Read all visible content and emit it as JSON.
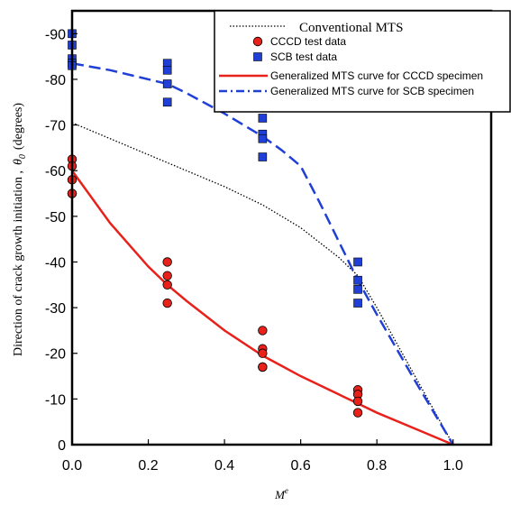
{
  "chart_data": {
    "type": "scatter",
    "xlabel": "M",
    "xlabel_superscript": "e",
    "ylabel_prefix": "Direction of crack growth initiation ,",
    "ylabel_symbol": "θ",
    "ylabel_subscript": "0",
    "ylabel_suffix": "(degrees)",
    "xlim": [
      0,
      1.1
    ],
    "ylim": [
      0,
      -95
    ],
    "xticks": [
      0.0,
      0.2,
      0.4,
      0.6,
      0.8,
      1.0
    ],
    "xtick_labels": [
      "0.0",
      "0.2",
      "0.4",
      "0.6",
      "0.8",
      "1.0"
    ],
    "yticks": [
      0,
      -10,
      -20,
      -30,
      -40,
      -50,
      -60,
      -70,
      -80,
      -90
    ],
    "ytick_labels": [
      "0",
      "-10",
      "-20",
      "-30",
      "-40",
      "-50",
      "-60",
      "-70",
      "-80",
      "-90"
    ],
    "grid": false,
    "legend_position": "top-right",
    "series": [
      {
        "name": "Conventional MTS",
        "kind": "line",
        "style": "dotted",
        "color": "#000000",
        "x": [
          0.0,
          0.1,
          0.2,
          0.3,
          0.4,
          0.5,
          0.6,
          0.7,
          0.75,
          0.8,
          0.9,
          1.0
        ],
        "y": [
          -70.5,
          -67.0,
          -63.5,
          -60.0,
          -56.5,
          -52.5,
          -47.5,
          -41.0,
          -37.0,
          -30.0,
          -15.0,
          0.0
        ]
      },
      {
        "name": "CCCD test data",
        "kind": "scatter",
        "marker": "circle",
        "color": "#e8211b",
        "x": [
          0.0,
          0.0,
          0.0,
          0.0,
          0.0,
          0.25,
          0.25,
          0.25,
          0.25,
          0.5,
          0.5,
          0.5,
          0.5,
          0.5,
          0.75,
          0.75,
          0.75,
          0.75
        ],
        "y": [
          -62.5,
          -61.0,
          -58.0,
          -55.0,
          -55.0,
          -40.0,
          -37.0,
          -35.0,
          -31.0,
          -25.0,
          -21.0,
          -20.0,
          -17.0,
          -17.0,
          -12.0,
          -11.0,
          -9.5,
          -7.0
        ]
      },
      {
        "name": "SCB test data",
        "kind": "scatter",
        "marker": "square",
        "color": "#1f3fd6",
        "x": [
          0.0,
          0.0,
          0.0,
          0.0,
          0.0,
          0.25,
          0.25,
          0.25,
          0.25,
          0.5,
          0.5,
          0.5,
          0.5,
          0.5,
          0.75,
          0.75,
          0.75,
          0.75
        ],
        "y": [
          -90.0,
          -87.5,
          -84.5,
          -83.5,
          -83.0,
          -83.5,
          -82.0,
          -79.0,
          -75.0,
          -75.0,
          -71.5,
          -68.0,
          -67.0,
          -63.0,
          -40.0,
          -36.0,
          -34.0,
          -31.0
        ]
      },
      {
        "name": "Generalized MTS curve for CCCD specimen",
        "kind": "line",
        "style": "solid",
        "color": "#e8211b",
        "x": [
          0.0,
          0.1,
          0.2,
          0.25,
          0.3,
          0.4,
          0.5,
          0.6,
          0.7,
          0.75,
          0.8,
          0.9,
          1.0
        ],
        "y": [
          -60.0,
          -48.5,
          -39.0,
          -35.0,
          -31.5,
          -25.0,
          -19.5,
          -15.0,
          -11.0,
          -9.0,
          -7.0,
          -3.5,
          0.0
        ]
      },
      {
        "name": "Generalized MTS curve for SCB specimen",
        "kind": "line",
        "style": "dashed",
        "color": "#1f3fd6",
        "x": [
          0.0,
          0.1,
          0.2,
          0.25,
          0.3,
          0.4,
          0.5,
          0.55,
          0.6,
          0.65,
          0.7,
          0.75,
          0.8,
          0.9,
          1.0
        ],
        "y": [
          -83.5,
          -82.0,
          -80.0,
          -79.0,
          -77.0,
          -72.5,
          -67.5,
          -64.5,
          -61.0,
          -53.0,
          -44.5,
          -36.0,
          -28.5,
          -14.0,
          0.0
        ]
      }
    ]
  }
}
